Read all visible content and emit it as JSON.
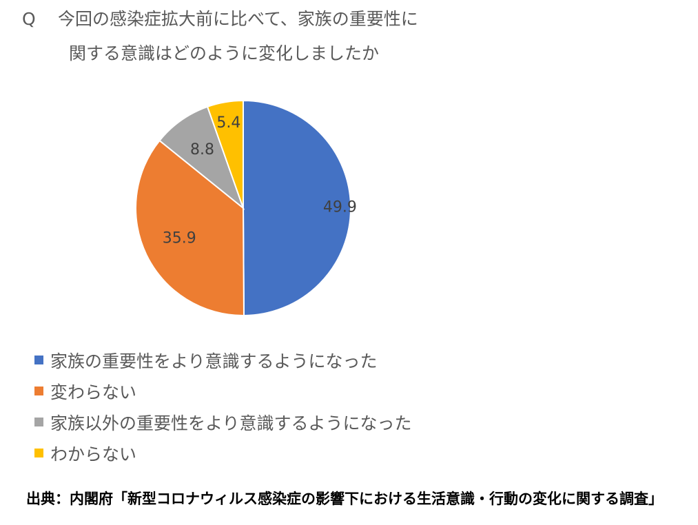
{
  "question": {
    "marker": "Q",
    "line1": "今回の感染症拡大前に比べて、家族の重要性に",
    "line2": "関する意識はどのように変化しましたか"
  },
  "chart_data": {
    "type": "pie",
    "title": "",
    "categories": [
      "家族の重要性をより意識するようになった",
      "変わらない",
      "家族以外の重要性をより意識するようになった",
      "わからない"
    ],
    "values": [
      49.9,
      35.9,
      8.8,
      5.4
    ],
    "data_labels": [
      "49.9",
      "35.9",
      "8.8",
      "5.4"
    ],
    "colors": [
      "#4472C4",
      "#ED7D31",
      "#A5A5A5",
      "#FFC000"
    ],
    "start_angle": "12 o'clock",
    "direction": "clockwise",
    "legend": "bottom-left"
  },
  "source": "出典：内閣府「新型コロナウィルス感染症の影響下における生活意識・行動の変化に関する調査」"
}
